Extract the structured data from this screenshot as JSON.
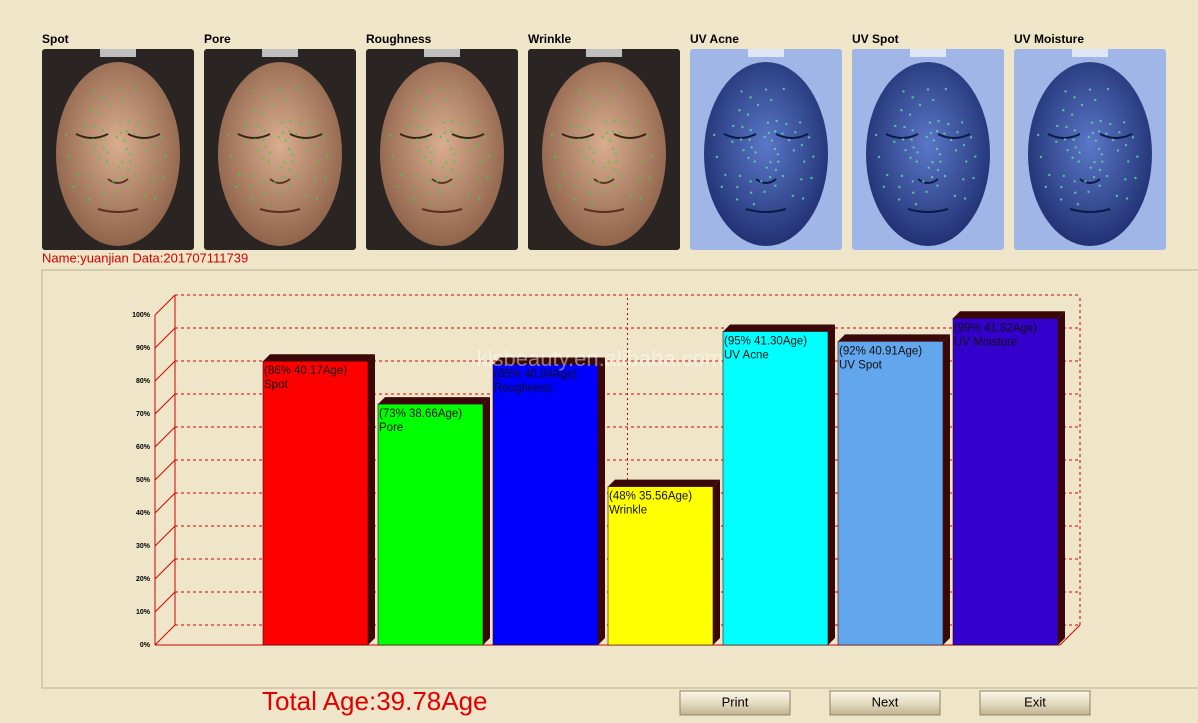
{
  "panels": [
    {
      "label": "Spot",
      "mode": "visible"
    },
    {
      "label": "Pore",
      "mode": "visible"
    },
    {
      "label": "Roughness",
      "mode": "visible"
    },
    {
      "label": "Wrinkle",
      "mode": "visible"
    },
    {
      "label": "UV Acne",
      "mode": "uv"
    },
    {
      "label": "UV Spot",
      "mode": "uv"
    },
    {
      "label": "UV Moisture",
      "mode": "uv"
    }
  ],
  "info": "Name:yuanjian Data:201707111739",
  "watermark": "klsbeauty.en.alibaba.com",
  "chart_data": {
    "type": "bar3d",
    "categories": [
      "Spot",
      "Pore",
      "Roughness",
      "Wrinkle",
      "UV Acne",
      "UV Spot",
      "UV Moisture"
    ],
    "values": [
      86,
      73,
      85,
      48,
      95,
      92,
      99
    ],
    "value_labels": [
      "(86% 40.17Age)",
      "(73% 38.66Age)",
      "(85% 40.04Age)",
      "(48% 35.56Age)",
      "(95% 41.30Age)",
      "(92% 40.91Age)",
      "(99% 41.82Age)"
    ],
    "colors": [
      "#ff0000",
      "#00ff00",
      "#0000ff",
      "#ffff00",
      "#00ffff",
      "#62a6ee",
      "#3300cc"
    ],
    "ylim": [
      0,
      100
    ],
    "yticks": [
      {
        "value": 0,
        "label": "0%"
      },
      {
        "value": 10,
        "label": "10%"
      },
      {
        "value": 20,
        "label": "20%"
      },
      {
        "value": 30,
        "label": "30%"
      },
      {
        "value": 40,
        "label": "40%"
      },
      {
        "value": 50,
        "label": "50%"
      },
      {
        "value": 60,
        "label": "60%"
      },
      {
        "value": 70,
        "label": "70%"
      },
      {
        "value": 80,
        "label": "80%"
      },
      {
        "value": 90,
        "label": "90%"
      },
      {
        "value": 100,
        "label": "100%"
      }
    ],
    "grid": true
  },
  "total_age": "Total Age:39.78Age",
  "buttons": [
    "Print",
    "Next",
    "Exit"
  ]
}
